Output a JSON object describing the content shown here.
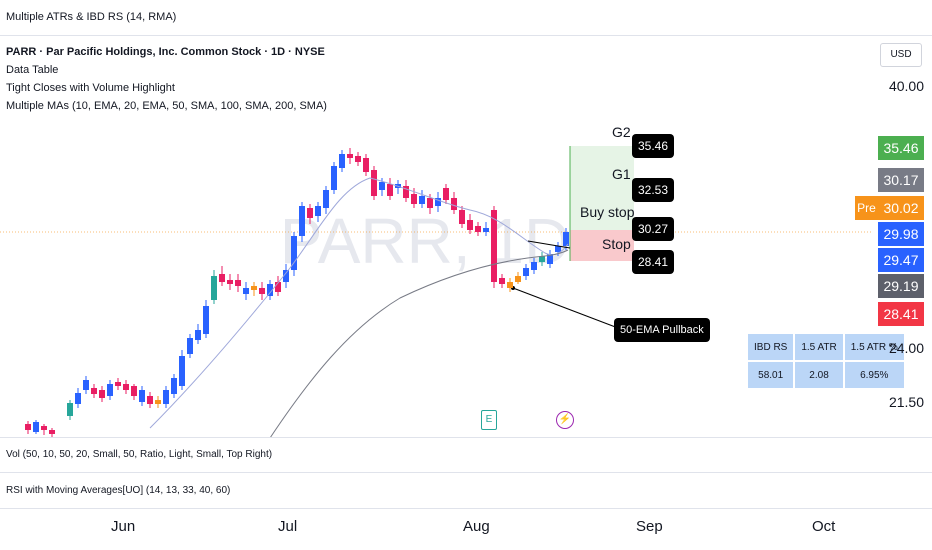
{
  "top_indicator": "Multiple ATRs & IBD RS (14, RMA)",
  "header": {
    "symbol_line": "PARR · Par Pacific Holdings, Inc. Common Stock · 1D · NYSE",
    "indicators": [
      "Data Table",
      "Tight Closes with Volume Highlight",
      "Multiple MAs (10, EMA, 20, EMA, 50, SMA, 100, SMA, 200, SMA)"
    ]
  },
  "watermark": "PARR, 1D",
  "currency_button": "USD",
  "price_axis": {
    "ticks": [
      "40.00",
      "24.00",
      "21.50"
    ]
  },
  "price_tags": [
    {
      "value": "35.46",
      "color": "#4caf50"
    },
    {
      "value": "30.17",
      "color": "#787b86"
    },
    {
      "value": "30.02",
      "color": "#f7931a"
    },
    {
      "value": "29.98",
      "color": "#2962ff"
    },
    {
      "value": "29.47",
      "color": "#2962ff"
    },
    {
      "value": "29.19",
      "color": "#5d606b"
    },
    {
      "value": "28.41",
      "color": "#f23645"
    }
  ],
  "pre_label": "Pre",
  "plan": {
    "g2": {
      "name": "G2",
      "value": "35.46"
    },
    "g1": {
      "name": "G1",
      "value": "32.53"
    },
    "buy_stop": {
      "name": "Buy stop",
      "value": "30.27"
    },
    "stop": {
      "name": "Stop",
      "value": "28.41"
    },
    "pullback_note": "50-EMA Pullback"
  },
  "data_table": {
    "headers": [
      "IBD RS",
      "1.5 ATR",
      "1.5 ATR %"
    ],
    "values": [
      "58.01",
      "2.08",
      "6.95%"
    ]
  },
  "markers": {
    "earnings": "E",
    "dividend": "⚡"
  },
  "panes": {
    "volume": "Vol (50, 10, 50, 20, Small, 50, Ratio, Light, Small, Top Right)",
    "rsi": "RSI with Moving Averages[UO] (14, 13, 33, 40, 60)"
  },
  "time_axis": [
    "Jun",
    "Jul",
    "Aug",
    "Sep",
    "Oct"
  ],
  "colors": {
    "up": "#2962ff",
    "down": "#e91e63",
    "tight": "#f7931a",
    "tight_green": "#26a69a",
    "target_zone": "#e6f4e6",
    "stop_zone": "#f9c9cc",
    "ema_line": "#9fa8da",
    "sma_line": "#787b86"
  }
}
